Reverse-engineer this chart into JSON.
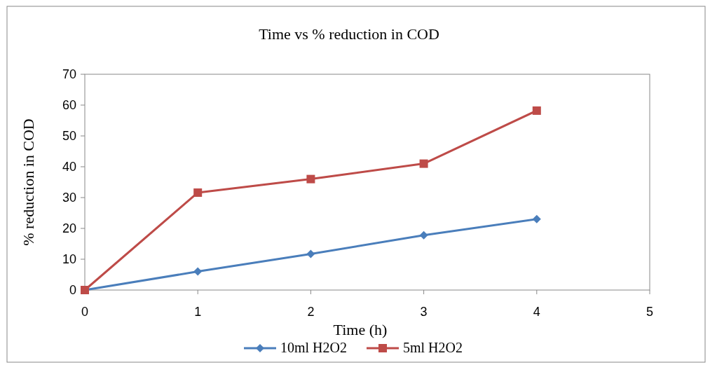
{
  "chart_data": {
    "type": "line",
    "title": "Time vs % reduction in COD",
    "xlabel": "Time  (h)",
    "ylabel": "% reduction in COD",
    "x": [
      0,
      1,
      2,
      3,
      4
    ],
    "xlim": [
      0,
      5
    ],
    "xticks": [
      0,
      1,
      2,
      3,
      4,
      5
    ],
    "ylim": [
      0,
      70
    ],
    "yticks": [
      0,
      10,
      20,
      30,
      40,
      50,
      60,
      70
    ],
    "grid": false,
    "legend": "bottom",
    "line_style": "solid",
    "series": [
      {
        "name": "10ml H2O2",
        "color": "#4a7ebb",
        "marker": "diamond",
        "values": [
          0,
          6,
          11.7,
          17.8,
          23
        ]
      },
      {
        "name": "5ml H2O2",
        "color": "#be4b48",
        "marker": "square",
        "values": [
          0,
          31.6,
          36,
          41,
          58.2
        ]
      }
    ]
  }
}
